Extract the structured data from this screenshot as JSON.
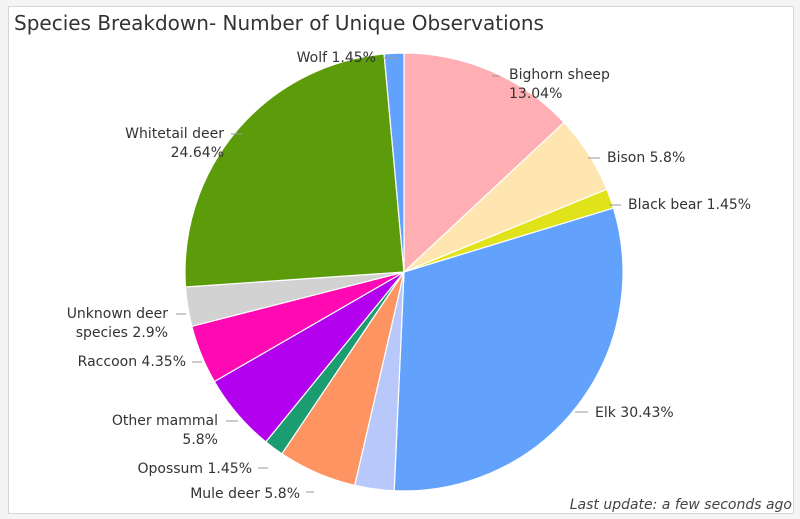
{
  "title": "Species Breakdown- Number of Unique Observations",
  "footer": "Last update: a few seconds ago",
  "chart_data": {
    "type": "pie",
    "title": "Species Breakdown- Number of Unique Observations",
    "legend": "none (slice labels with leader lines)",
    "slices": [
      {
        "label": "Bighorn sheep",
        "value": 13.04,
        "color": "#ffafb3"
      },
      {
        "label": "Bison",
        "value": 5.8,
        "color": "#ffe6b0"
      },
      {
        "label": "Black bear",
        "value": 1.45,
        "color": "#e1e31a"
      },
      {
        "label": "Elk",
        "value": 30.43,
        "color": "#62a2fd"
      },
      {
        "label": "Mule deer",
        "value": 2.9,
        "color": "#b9c8fb"
      },
      {
        "label": "Mule deer",
        "value": 5.8,
        "color": "#fe9462"
      },
      {
        "label": "Opossum",
        "value": 1.45,
        "color": "#1b9c71"
      },
      {
        "label": "Other mammal",
        "value": 5.8,
        "color": "#b300ee"
      },
      {
        "label": "Raccoon",
        "value": 4.35,
        "color": "#ff0ab2"
      },
      {
        "label": "Unknown deer species",
        "value": 2.9,
        "color": "#d2d2d2"
      },
      {
        "label": "Whitetail deer",
        "value": 24.64,
        "color": "#5c9b0a"
      },
      {
        "label": "Wolf",
        "value": 1.45,
        "color": "#62a2fd"
      }
    ],
    "labels": [
      {
        "lines": [
          "Bighorn sheep",
          "13.04%"
        ]
      },
      {
        "lines": [
          "Bison 5.8%"
        ]
      },
      {
        "lines": [
          "Black bear 1.45%"
        ]
      },
      {
        "lines": [
          "Elk 30.43%"
        ]
      },
      {
        "lines": []
      },
      {
        "lines": [
          "Mule deer 5.8%"
        ]
      },
      {
        "lines": [
          "Opossum 1.45%"
        ]
      },
      {
        "lines": [
          "Other mammal",
          "5.8%"
        ]
      },
      {
        "lines": [
          "Raccoon 4.35%"
        ]
      },
      {
        "lines": [
          "Unknown deer",
          "species 2.9%"
        ]
      },
      {
        "lines": [
          "Whitetail deer",
          "24.64%"
        ]
      },
      {
        "lines": [
          "Wolf 1.45%"
        ]
      }
    ]
  }
}
